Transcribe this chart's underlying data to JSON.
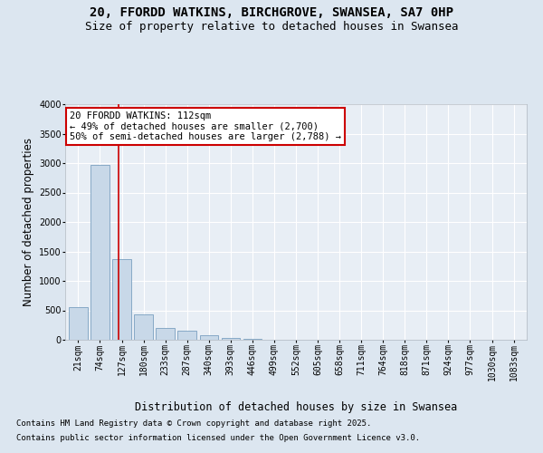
{
  "title_line1": "20, FFORDD WATKINS, BIRCHGROVE, SWANSEA, SA7 0HP",
  "title_line2": "Size of property relative to detached houses in Swansea",
  "xlabel": "Distribution of detached houses by size in Swansea",
  "ylabel": "Number of detached properties",
  "categories": [
    "21sqm",
    "74sqm",
    "127sqm",
    "180sqm",
    "233sqm",
    "287sqm",
    "340sqm",
    "393sqm",
    "446sqm",
    "499sqm",
    "552sqm",
    "605sqm",
    "658sqm",
    "711sqm",
    "764sqm",
    "818sqm",
    "871sqm",
    "924sqm",
    "977sqm",
    "1030sqm",
    "1083sqm"
  ],
  "values": [
    550,
    2970,
    1370,
    430,
    195,
    155,
    70,
    25,
    10,
    0,
    0,
    0,
    0,
    0,
    0,
    0,
    0,
    0,
    0,
    0,
    0
  ],
  "bar_color": "#c8d8e8",
  "bar_edge_color": "#7aa0c0",
  "vline_x_idx": 1.85,
  "vline_color": "#cc0000",
  "annotation_text": "20 FFORDD WATKINS: 112sqm\n← 49% of detached houses are smaller (2,700)\n50% of semi-detached houses are larger (2,788) →",
  "annotation_box_color": "#ffffff",
  "annotation_border_color": "#cc0000",
  "ylim": [
    0,
    4000
  ],
  "yticks": [
    0,
    500,
    1000,
    1500,
    2000,
    2500,
    3000,
    3500,
    4000
  ],
  "background_color": "#dce6f0",
  "plot_bg_color": "#e8eef5",
  "footer_line1": "Contains HM Land Registry data © Crown copyright and database right 2025.",
  "footer_line2": "Contains public sector information licensed under the Open Government Licence v3.0.",
  "title_fontsize": 10,
  "subtitle_fontsize": 9,
  "axis_label_fontsize": 8.5,
  "tick_fontsize": 7,
  "annotation_fontsize": 7.5,
  "footer_fontsize": 6.5
}
